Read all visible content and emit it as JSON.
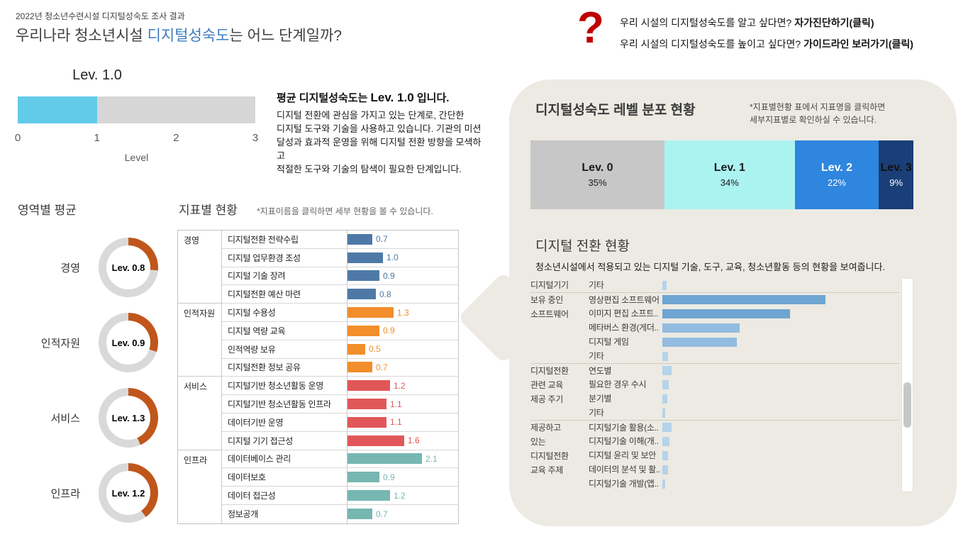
{
  "header": {
    "eyebrow": "2022년 청소년수련시설 디지털성숙도 조사 결과",
    "title": {
      "prefix": "우리나라 청소년시설 ",
      "highlight": "디지털성숙도",
      "suffix": "는 어느 단계일까?"
    },
    "highlight_color": "#3e7cc0"
  },
  "help": {
    "icon_glyph": "?",
    "icon_color": "#c00000",
    "line1": {
      "text": "우리 시설의 디지털성숙도를 알고 싶다면? ",
      "link": "자가진단하기(클릭)"
    },
    "line2": {
      "text": "우리 시설의 디지털성숙도를 높이고 싶다면? ",
      "link": "가이드라인 보러가기(클릭)"
    }
  },
  "gauge": {
    "label": "Lev. 1.0",
    "value": 1.0,
    "max": 3,
    "ticks": [
      "0",
      "1",
      "2",
      "3"
    ],
    "axis_label": "Level",
    "fill_color": "#62cbe9",
    "track_color": "#d6d6d6"
  },
  "summary": {
    "headline": {
      "prefix": "평균 디지털성숙도는 ",
      "level": "Lev. 1.0",
      "suffix": " 입니다."
    },
    "lines": [
      "디지털 전환에 관심을 가지고 있는 단계로, 간단한",
      "디지털 도구와 기술을 사용하고 있습니다. 기관의 미션",
      "달성과 효과적 운영을 위해 디지털 전환 방향을 모색하고",
      "적절한 도구와 기술의 탐색이 필요한 단계입니다."
    ]
  },
  "domain_averages": {
    "title": "영역별 평균",
    "max": 3,
    "arc_color": "#c0561c",
    "track_color": "#d9d9d9",
    "items": [
      {
        "label": "경영",
        "value": 0.8,
        "value_label": "Lev. 0.8"
      },
      {
        "label": "인적자원",
        "value": 0.9,
        "value_label": "Lev. 0.9"
      },
      {
        "label": "서비스",
        "value": 1.3,
        "value_label": "Lev. 1.3"
      },
      {
        "label": "인프라",
        "value": 1.2,
        "value_label": "Lev. 1.2"
      }
    ]
  },
  "indicators": {
    "title": "지표별 현황",
    "note": "*지표이름을 클릭하면 세부 현황을 볼 수 있습니다.",
    "max": 3,
    "groups": [
      {
        "name": "경영",
        "color": "#4e79a7",
        "rows": [
          {
            "label": "디지털전환 전략수립",
            "value": 0.7
          },
          {
            "label": "디지털 업무환경 조성",
            "value": 1.0
          },
          {
            "label": "디지털 기술 장려",
            "value": 0.9
          },
          {
            "label": "디지털전환 예산 마련",
            "value": 0.8
          }
        ]
      },
      {
        "name": "인적자원",
        "color": "#f28e2b",
        "rows": [
          {
            "label": "디지털 수용성",
            "value": 1.3
          },
          {
            "label": "디지털 역량 교육",
            "value": 0.9
          },
          {
            "label": "인적역량 보유",
            "value": 0.5
          },
          {
            "label": "디지털전환 정보 공유",
            "value": 0.7
          }
        ]
      },
      {
        "name": "서비스",
        "color": "#e15759",
        "rows": [
          {
            "label": "디지털기반 청소년활동 운영",
            "value": 1.2
          },
          {
            "label": "디지털기반 청소년활동 인프라",
            "value": 1.1
          },
          {
            "label": "데이터기반 운영",
            "value": 1.1
          },
          {
            "label": "디지털 기기 접근성",
            "value": 1.6
          }
        ]
      },
      {
        "name": "인프라",
        "color": "#76b7b2",
        "rows": [
          {
            "label": "데이터베이스 관리",
            "value": 2.1
          },
          {
            "label": "데이터보호",
            "value": 0.9
          },
          {
            "label": "데이터 접근성",
            "value": 1.2
          },
          {
            "label": "정보공개",
            "value": 0.7
          }
        ]
      }
    ]
  },
  "distribution": {
    "title": "디지털성숙도 레벨 분포 현황",
    "note_lines": [
      "*지표별현황 표에서 지표명을 클릭하면",
      "세부지표별로 확인하실 수 있습니다."
    ],
    "segments": [
      {
        "label": "Lev. 0",
        "pct": 35,
        "color": "#c7c7c7",
        "label_color": "#1a1a1a",
        "pct_color": "#1a1a1a"
      },
      {
        "label": "Lev. 1",
        "pct": 34,
        "color": "#abf3f1",
        "label_color": "#1a1a1a",
        "pct_color": "#1a1a1a"
      },
      {
        "label": "Lev. 2",
        "pct": 22,
        "color": "#2e86df",
        "label_color": "#ffffff",
        "pct_color": "#ffffff"
      },
      {
        "label": "Lev. 3",
        "pct": 9,
        "color": "#1a3f78",
        "label_color": "#101010",
        "pct_color": "#ffffff"
      }
    ]
  },
  "transition": {
    "title": "디지털 전환 현황",
    "subtitle": "청소년시설에서 적용되고 있는 디지털 기술, 도구, 교육, 청소년활동 등의 현황을 보여줍니다.",
    "groups": [
      {
        "name_lines": [
          "디지털기기"
        ],
        "rows": [
          {
            "label": "기타",
            "pct": 1.8,
            "color": "#b5d3ea"
          }
        ]
      },
      {
        "name_lines": [
          "보유 중인",
          "소프트웨어"
        ],
        "rows": [
          {
            "label": "영상편집 소프트웨어",
            "pct": 69,
            "color": "#6fa5d2"
          },
          {
            "label": "이미지 편집 소프트..",
            "pct": 54,
            "color": "#6fa5d2"
          },
          {
            "label": "메타버스 환경(게더..",
            "pct": 32.5,
            "color": "#92bcdf"
          },
          {
            "label": "디지털 게임",
            "pct": 31.5,
            "color": "#92bcdf"
          },
          {
            "label": "기타",
            "pct": 2.4,
            "color": "#b5d3ea"
          }
        ]
      },
      {
        "name_lines": [
          "디지털전환",
          "관련 교육",
          "제공 주기"
        ],
        "rows": [
          {
            "label": "연도별",
            "pct": 3.8,
            "color": "#b5d3ea"
          },
          {
            "label": "필요한 경우 수시",
            "pct": 2.7,
            "color": "#b5d3ea"
          },
          {
            "label": "분기별",
            "pct": 2.0,
            "color": "#b5d3ea"
          },
          {
            "label": "기타",
            "pct": 1.2,
            "color": "#b5d3ea"
          }
        ]
      },
      {
        "name_lines": [
          "제공하고",
          "있는",
          "디지털전환",
          "교육 주제"
        ],
        "rows": [
          {
            "label": "디지털기술 활용(소..",
            "pct": 3.8,
            "color": "#b5d3ea"
          },
          {
            "label": "디지털기술 이해(개..",
            "pct": 3.0,
            "color": "#b5d3ea"
          },
          {
            "label": "디지털 윤리 및 보안",
            "pct": 2.4,
            "color": "#b5d3ea"
          },
          {
            "label": "데이터의 분석 및 활..",
            "pct": 2.4,
            "color": "#b5d3ea"
          },
          {
            "label": "디지털기술 개발(앱..",
            "pct": 1.2,
            "color": "#b5d3ea"
          }
        ]
      }
    ]
  },
  "chart_data": [
    {
      "type": "bar",
      "title": "평균 디지털성숙도",
      "orientation": "horizontal",
      "categories": [
        "평균"
      ],
      "values": [
        1.0
      ],
      "xlabel": "Level",
      "xlim": [
        0,
        3
      ],
      "data_label": "Lev. 1.0"
    },
    {
      "type": "pie",
      "title": "영역별 평균 (도넛 게이지, 만점 3)",
      "categories": [
        "경영",
        "인적자원",
        "서비스",
        "인프라"
      ],
      "values": [
        0.8,
        0.9,
        1.3,
        1.2
      ],
      "ylim": [
        0,
        3
      ]
    },
    {
      "type": "bar",
      "title": "지표별 현황",
      "orientation": "horizontal",
      "categories": [
        "디지털전환 전략수립",
        "디지털 업무환경 조성",
        "디지털 기술 장려",
        "디지털전환 예산 마련",
        "디지털 수용성",
        "디지털 역량 교육",
        "인적역량 보유",
        "디지털전환 정보 공유",
        "디지털기반 청소년활동 운영",
        "디지털기반 청소년활동 인프라",
        "데이터기반 운영",
        "디지털 기기 접근성",
        "데이터베이스 관리",
        "데이터보호",
        "데이터 접근성",
        "정보공개"
      ],
      "values": [
        0.7,
        1.0,
        0.9,
        0.8,
        1.3,
        0.9,
        0.5,
        0.7,
        1.2,
        1.1,
        1.1,
        1.6,
        2.1,
        0.9,
        1.2,
        0.7
      ],
      "xlim": [
        0,
        3
      ]
    },
    {
      "type": "bar",
      "title": "디지털성숙도 레벨 분포 현황",
      "stacked": true,
      "categories": [
        "Lev. 0",
        "Lev. 1",
        "Lev. 2",
        "Lev. 3"
      ],
      "values": [
        35,
        34,
        22,
        9
      ],
      "unit": "%"
    },
    {
      "type": "bar",
      "title": "디지털 전환 현황",
      "orientation": "horizontal",
      "note": "축 수치 미표기 — 값은 막대 길이 상대 추정치(%)",
      "categories": [
        "기타(디지털기기)",
        "영상편집 소프트웨어",
        "이미지 편집 소프트..",
        "메타버스 환경(게더..",
        "디지털 게임",
        "기타(소프트웨어)",
        "연도별",
        "필요한 경우 수시",
        "분기별",
        "기타(교육 주기)",
        "디지털기술 활용(소..",
        "디지털기술 이해(개..",
        "디지털 윤리 및 보안",
        "데이터의 분석 및 활..",
        "디지털기술 개발(앱.."
      ],
      "values": [
        1.8,
        69,
        54,
        32.5,
        31.5,
        2.4,
        3.8,
        2.7,
        2.0,
        1.2,
        3.8,
        3.0,
        2.4,
        2.4,
        1.2
      ]
    }
  ]
}
